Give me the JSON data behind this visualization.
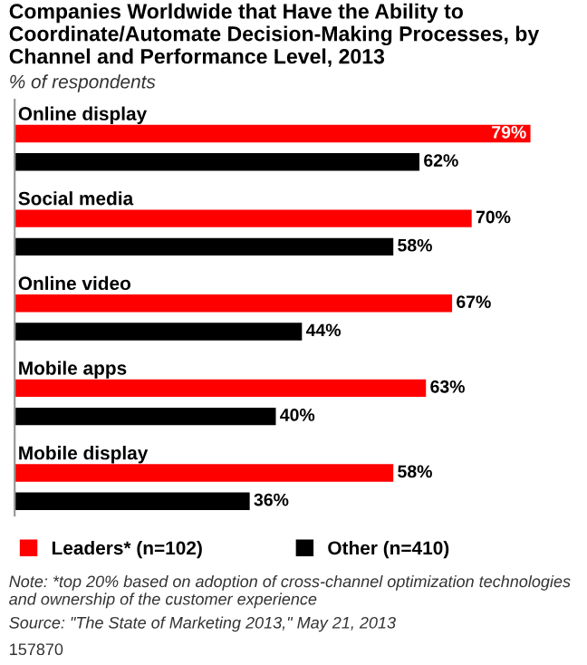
{
  "chart_data": {
    "type": "bar",
    "orientation": "horizontal",
    "title": "Companies Worldwide that Have the Ability to Coordinate/Automate Decision-Making Processes, by Channel and Performance Level, 2013",
    "subtitle": "% of respondents",
    "categories": [
      "Online display",
      "Social media",
      "Online video",
      "Mobile apps",
      "Mobile display"
    ],
    "series": [
      {
        "name": "Leaders* (n=102)",
        "color": "#ff0000",
        "values": [
          79,
          70,
          67,
          63,
          58
        ],
        "value_labels": [
          "79%",
          "70%",
          "67%",
          "63%",
          "58%"
        ]
      },
      {
        "name": "Other (n=410)",
        "color": "#000000",
        "values": [
          62,
          58,
          44,
          40,
          36
        ],
        "value_labels": [
          "62%",
          "58%",
          "44%",
          "40%",
          "36%"
        ]
      }
    ],
    "legend": "bottom",
    "annotations": [
      "Note: *top 20% based on adoption of cross-channel optimization technologies and ownership of the customer experience",
      "Source: \"The State of Marketing 2013,\" May 21, 2013",
      "157870"
    ]
  }
}
